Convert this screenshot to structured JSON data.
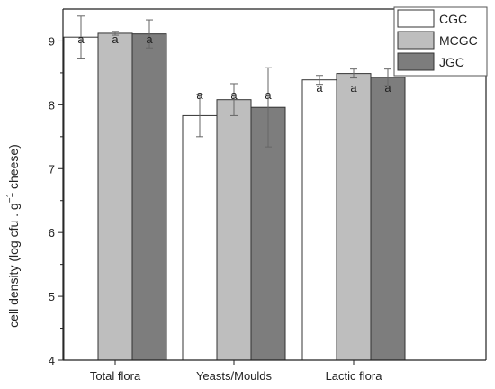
{
  "chart_data": {
    "type": "bar",
    "categories": [
      "Total flora",
      "Yeasts/Moulds",
      "Lactic flora"
    ],
    "ylabel_parts": [
      "cell density (log cfu . g",
      "−1",
      " cheese)"
    ],
    "ylim": [
      4,
      9.5
    ],
    "yticks": [
      4,
      5,
      6,
      7,
      8,
      9
    ],
    "series": [
      {
        "name": "CGC",
        "color": "#ffffff",
        "values": [
          9.06,
          7.83,
          8.39
        ],
        "errors": [
          0.33,
          0.33,
          0.07
        ]
      },
      {
        "name": "MCGC",
        "color": "#bebebe",
        "values": [
          9.12,
          8.08,
          8.49
        ],
        "errors": [
          0.03,
          0.25,
          0.07
        ]
      },
      {
        "name": "JGC",
        "color": "#7d7d7d",
        "values": [
          9.11,
          7.96,
          8.43
        ],
        "errors": [
          0.22,
          0.62,
          0.13
        ]
      }
    ],
    "significance_labels": [
      [
        "a",
        "a",
        "a"
      ],
      [
        "a",
        "a",
        "a"
      ],
      [
        "a",
        "a",
        "a"
      ]
    ],
    "legend_position": "top-right",
    "grid": false
  }
}
